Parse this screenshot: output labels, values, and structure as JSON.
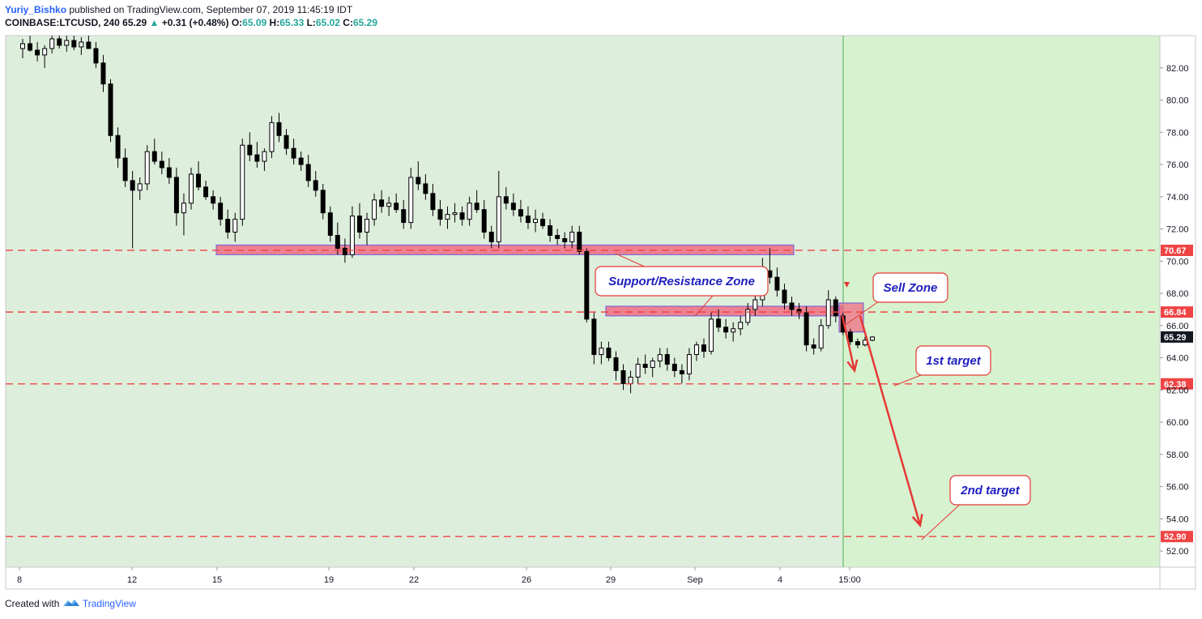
{
  "header": {
    "author": "Yuriy_Bishko",
    "published": "published on TradingView.com, September 07, 2019 11:45:19 IDT",
    "symbol": "COINBASE:LTCUSD, 240",
    "last": "65.29",
    "change_arrow": "▲",
    "change": "+0.31 (+0.48%)",
    "o_label": "O:",
    "o_value": "65.09",
    "h_label": "H:",
    "h_value": "65.33",
    "l_label": "L:",
    "l_value": "65.02",
    "c_label": "C:",
    "c_value": "65.29"
  },
  "footer": {
    "created_with": "Created with",
    "brand": "TradingView",
    "logo_icon": "tradingview-logo-icon"
  },
  "colors": {
    "past_background": "#deeedd",
    "future_background": "#d7f2cf",
    "level_line": "#ef4444",
    "level_tag": "#ef4444",
    "zone_fill": "#f06d84",
    "zone_border": "#6b5bd6",
    "callout_border": "#e53935",
    "callout_text": "#1d1dbf",
    "arrow": "#e53935",
    "candle": "#000000",
    "current_price_tag": "#131722",
    "vertical_line": "#4caf50"
  },
  "chart_data": {
    "type": "candlestick",
    "timeframe": "240",
    "ylim": [
      51,
      84
    ],
    "y_ticks": [
      "82.00",
      "80.00",
      "78.00",
      "76.00",
      "74.00",
      "72.00",
      "70.00",
      "68.00",
      "66.00",
      "64.00",
      "62.00",
      "60.00",
      "58.00",
      "56.00",
      "54.00",
      "52.00"
    ],
    "x_ticks": [
      "8",
      "12",
      "15",
      "19",
      "22",
      "26",
      "29",
      "Sep",
      "4",
      "15:00"
    ],
    "current_price": "65.29",
    "levels": [
      {
        "price": 70.67,
        "label": "70.67"
      },
      {
        "price": 66.84,
        "label": "66.84"
      },
      {
        "price": 62.38,
        "label": "62.38"
      },
      {
        "price": 52.9,
        "label": "52.90"
      }
    ],
    "zones": [
      {
        "name": "upper-support-resistance",
        "from_date": "Aug 15",
        "to_date": "Sep 4",
        "low": 70.4,
        "high": 71.0
      },
      {
        "name": "lower-support-resistance",
        "from_date": "Aug 29",
        "to_date": "Sep 6",
        "low": 66.6,
        "high": 67.2
      },
      {
        "name": "sell-zone",
        "from_date": "Sep 6",
        "to_date": "Sep 7",
        "low": 65.6,
        "high": 67.4
      }
    ],
    "annotations": [
      {
        "text": "Support/Resistance Zone"
      },
      {
        "text": "Sell Zone"
      },
      {
        "text": "1st target"
      },
      {
        "text": "2nd target"
      }
    ],
    "arrows": [
      {
        "from_price": 66.6,
        "to_price": 63.2
      },
      {
        "from_price": 66.6,
        "to_price": 53.6
      }
    ],
    "candles": [
      {
        "o": 83.2,
        "h": 83.8,
        "l": 82.6,
        "c": 83.5
      },
      {
        "o": 83.5,
        "h": 84.0,
        "l": 83.0,
        "c": 83.1
      },
      {
        "o": 83.1,
        "h": 83.6,
        "l": 82.4,
        "c": 82.8
      },
      {
        "o": 82.8,
        "h": 83.4,
        "l": 82.0,
        "c": 83.2
      },
      {
        "o": 83.2,
        "h": 84.1,
        "l": 82.9,
        "c": 83.8
      },
      {
        "o": 83.8,
        "h": 84.2,
        "l": 83.2,
        "c": 83.4
      },
      {
        "o": 83.4,
        "h": 84.0,
        "l": 83.0,
        "c": 83.7
      },
      {
        "o": 83.7,
        "h": 84.0,
        "l": 83.1,
        "c": 83.3
      },
      {
        "o": 83.3,
        "h": 83.9,
        "l": 82.8,
        "c": 83.6
      },
      {
        "o": 83.6,
        "h": 84.1,
        "l": 83.2,
        "c": 83.2
      },
      {
        "o": 83.2,
        "h": 83.6,
        "l": 82.0,
        "c": 82.3
      },
      {
        "o": 82.3,
        "h": 82.8,
        "l": 80.5,
        "c": 81.0
      },
      {
        "o": 81.0,
        "h": 81.3,
        "l": 77.4,
        "c": 77.8
      },
      {
        "o": 77.8,
        "h": 78.3,
        "l": 75.8,
        "c": 76.4
      },
      {
        "o": 76.4,
        "h": 77.0,
        "l": 74.6,
        "c": 75.0
      },
      {
        "o": 75.0,
        "h": 75.6,
        "l": 70.8,
        "c": 74.4
      },
      {
        "o": 74.4,
        "h": 75.2,
        "l": 73.8,
        "c": 74.8
      },
      {
        "o": 74.8,
        "h": 77.2,
        "l": 74.4,
        "c": 76.8
      },
      {
        "o": 76.8,
        "h": 77.6,
        "l": 76.0,
        "c": 76.2
      },
      {
        "o": 76.2,
        "h": 76.8,
        "l": 75.4,
        "c": 75.8
      },
      {
        "o": 75.8,
        "h": 76.4,
        "l": 74.8,
        "c": 75.2
      },
      {
        "o": 75.2,
        "h": 75.8,
        "l": 72.2,
        "c": 73.0
      },
      {
        "o": 73.0,
        "h": 74.2,
        "l": 71.6,
        "c": 73.6
      },
      {
        "o": 73.6,
        "h": 75.8,
        "l": 73.2,
        "c": 75.4
      },
      {
        "o": 75.4,
        "h": 76.2,
        "l": 74.4,
        "c": 74.6
      },
      {
        "o": 74.6,
        "h": 75.0,
        "l": 73.8,
        "c": 74.0
      },
      {
        "o": 74.0,
        "h": 74.4,
        "l": 73.2,
        "c": 73.6
      },
      {
        "o": 73.6,
        "h": 74.0,
        "l": 72.2,
        "c": 72.6
      },
      {
        "o": 72.6,
        "h": 73.2,
        "l": 71.4,
        "c": 71.8
      },
      {
        "o": 71.8,
        "h": 73.0,
        "l": 71.2,
        "c": 72.6
      },
      {
        "o": 72.6,
        "h": 77.6,
        "l": 72.2,
        "c": 77.2
      },
      {
        "o": 77.2,
        "h": 78.0,
        "l": 76.2,
        "c": 76.6
      },
      {
        "o": 76.6,
        "h": 77.4,
        "l": 75.8,
        "c": 76.2
      },
      {
        "o": 76.2,
        "h": 77.0,
        "l": 75.6,
        "c": 76.8
      },
      {
        "o": 76.8,
        "h": 79.0,
        "l": 76.4,
        "c": 78.6
      },
      {
        "o": 78.6,
        "h": 79.2,
        "l": 77.4,
        "c": 77.8
      },
      {
        "o": 77.8,
        "h": 78.2,
        "l": 76.6,
        "c": 77.0
      },
      {
        "o": 77.0,
        "h": 77.6,
        "l": 76.0,
        "c": 76.4
      },
      {
        "o": 76.4,
        "h": 76.8,
        "l": 75.6,
        "c": 76.0
      },
      {
        "o": 76.0,
        "h": 76.6,
        "l": 74.6,
        "c": 75.0
      },
      {
        "o": 75.0,
        "h": 75.6,
        "l": 74.0,
        "c": 74.4
      },
      {
        "o": 74.4,
        "h": 74.8,
        "l": 72.6,
        "c": 73.0
      },
      {
        "o": 73.0,
        "h": 73.4,
        "l": 71.2,
        "c": 71.6
      },
      {
        "o": 71.6,
        "h": 72.4,
        "l": 70.4,
        "c": 70.8
      },
      {
        "o": 70.8,
        "h": 71.4,
        "l": 69.9,
        "c": 70.4
      },
      {
        "o": 70.4,
        "h": 73.4,
        "l": 70.2,
        "c": 72.8
      },
      {
        "o": 72.8,
        "h": 73.6,
        "l": 71.4,
        "c": 71.8
      },
      {
        "o": 71.8,
        "h": 73.0,
        "l": 71.0,
        "c": 72.6
      },
      {
        "o": 72.6,
        "h": 74.2,
        "l": 72.2,
        "c": 73.8
      },
      {
        "o": 73.8,
        "h": 74.4,
        "l": 73.0,
        "c": 73.4
      },
      {
        "o": 73.4,
        "h": 74.0,
        "l": 72.8,
        "c": 73.6
      },
      {
        "o": 73.6,
        "h": 74.2,
        "l": 73.0,
        "c": 73.2
      },
      {
        "o": 73.2,
        "h": 73.8,
        "l": 72.0,
        "c": 72.4
      },
      {
        "o": 72.4,
        "h": 75.8,
        "l": 72.0,
        "c": 75.2
      },
      {
        "o": 75.2,
        "h": 76.2,
        "l": 74.4,
        "c": 74.8
      },
      {
        "o": 74.8,
        "h": 75.4,
        "l": 73.8,
        "c": 74.2
      },
      {
        "o": 74.2,
        "h": 74.8,
        "l": 72.8,
        "c": 73.2
      },
      {
        "o": 73.2,
        "h": 73.8,
        "l": 72.2,
        "c": 72.6
      },
      {
        "o": 72.6,
        "h": 73.4,
        "l": 72.0,
        "c": 72.9
      },
      {
        "o": 72.9,
        "h": 73.6,
        "l": 72.4,
        "c": 73.0
      },
      {
        "o": 73.0,
        "h": 73.4,
        "l": 72.2,
        "c": 72.6
      },
      {
        "o": 72.6,
        "h": 74.0,
        "l": 72.2,
        "c": 73.6
      },
      {
        "o": 73.6,
        "h": 74.4,
        "l": 73.0,
        "c": 73.2
      },
      {
        "o": 73.2,
        "h": 73.8,
        "l": 71.4,
        "c": 71.8
      },
      {
        "o": 71.8,
        "h": 72.2,
        "l": 70.8,
        "c": 71.2
      },
      {
        "o": 71.2,
        "h": 75.6,
        "l": 70.8,
        "c": 74.0
      },
      {
        "o": 74.0,
        "h": 74.6,
        "l": 73.2,
        "c": 73.6
      },
      {
        "o": 73.6,
        "h": 74.2,
        "l": 72.8,
        "c": 73.2
      },
      {
        "o": 73.2,
        "h": 73.8,
        "l": 72.4,
        "c": 72.8
      },
      {
        "o": 72.8,
        "h": 73.4,
        "l": 72.0,
        "c": 72.4
      },
      {
        "o": 72.4,
        "h": 73.2,
        "l": 71.8,
        "c": 72.6
      },
      {
        "o": 72.6,
        "h": 73.0,
        "l": 72.0,
        "c": 72.2
      },
      {
        "o": 72.2,
        "h": 72.6,
        "l": 71.2,
        "c": 71.6
      },
      {
        "o": 71.6,
        "h": 72.0,
        "l": 71.0,
        "c": 71.4
      },
      {
        "o": 71.4,
        "h": 71.8,
        "l": 70.8,
        "c": 71.2
      },
      {
        "o": 71.2,
        "h": 72.2,
        "l": 70.8,
        "c": 71.8
      },
      {
        "o": 71.8,
        "h": 72.2,
        "l": 70.4,
        "c": 70.6
      },
      {
        "o": 70.6,
        "h": 70.8,
        "l": 66.2,
        "c": 66.4
      },
      {
        "o": 66.4,
        "h": 66.8,
        "l": 63.6,
        "c": 64.2
      },
      {
        "o": 64.2,
        "h": 65.0,
        "l": 63.6,
        "c": 64.6
      },
      {
        "o": 64.6,
        "h": 65.0,
        "l": 63.8,
        "c": 64.0
      },
      {
        "o": 64.0,
        "h": 64.4,
        "l": 62.6,
        "c": 63.2
      },
      {
        "o": 63.2,
        "h": 63.6,
        "l": 62.0,
        "c": 62.4
      },
      {
        "o": 62.4,
        "h": 63.2,
        "l": 61.8,
        "c": 62.8
      },
      {
        "o": 62.8,
        "h": 64.0,
        "l": 62.4,
        "c": 63.6
      },
      {
        "o": 63.6,
        "h": 64.2,
        "l": 63.0,
        "c": 63.4
      },
      {
        "o": 63.4,
        "h": 64.0,
        "l": 62.8,
        "c": 63.8
      },
      {
        "o": 63.8,
        "h": 64.6,
        "l": 63.4,
        "c": 64.2
      },
      {
        "o": 64.2,
        "h": 64.6,
        "l": 63.2,
        "c": 63.6
      },
      {
        "o": 63.6,
        "h": 64.0,
        "l": 62.8,
        "c": 63.2
      },
      {
        "o": 63.2,
        "h": 63.6,
        "l": 62.4,
        "c": 63.0
      },
      {
        "o": 63.0,
        "h": 64.6,
        "l": 62.6,
        "c": 64.2
      },
      {
        "o": 64.2,
        "h": 65.0,
        "l": 63.8,
        "c": 64.8
      },
      {
        "o": 64.8,
        "h": 65.2,
        "l": 64.0,
        "c": 64.4
      },
      {
        "o": 64.4,
        "h": 66.8,
        "l": 64.2,
        "c": 66.4
      },
      {
        "o": 66.4,
        "h": 67.0,
        "l": 65.6,
        "c": 65.9
      },
      {
        "o": 65.9,
        "h": 66.4,
        "l": 65.2,
        "c": 65.6
      },
      {
        "o": 65.6,
        "h": 66.2,
        "l": 65.0,
        "c": 65.8
      },
      {
        "o": 65.8,
        "h": 66.6,
        "l": 65.4,
        "c": 66.2
      },
      {
        "o": 66.2,
        "h": 67.4,
        "l": 66.0,
        "c": 67.0
      },
      {
        "o": 67.0,
        "h": 68.0,
        "l": 66.6,
        "c": 67.6
      },
      {
        "o": 67.6,
        "h": 70.2,
        "l": 67.2,
        "c": 69.4
      },
      {
        "o": 69.4,
        "h": 70.8,
        "l": 68.6,
        "c": 69.0
      },
      {
        "o": 69.0,
        "h": 69.6,
        "l": 67.8,
        "c": 68.2
      },
      {
        "o": 68.2,
        "h": 68.6,
        "l": 67.0,
        "c": 67.4
      },
      {
        "o": 67.4,
        "h": 67.8,
        "l": 66.6,
        "c": 67.0
      },
      {
        "o": 67.0,
        "h": 67.4,
        "l": 66.4,
        "c": 66.8
      },
      {
        "o": 66.8,
        "h": 67.2,
        "l": 64.4,
        "c": 64.8
      },
      {
        "o": 64.8,
        "h": 65.2,
        "l": 64.2,
        "c": 64.6
      },
      {
        "o": 64.6,
        "h": 66.4,
        "l": 64.4,
        "c": 66.0
      },
      {
        "o": 66.0,
        "h": 68.2,
        "l": 65.8,
        "c": 67.6
      },
      {
        "o": 67.6,
        "h": 67.8,
        "l": 66.2,
        "c": 66.6
      },
      {
        "o": 66.6,
        "h": 66.8,
        "l": 65.4,
        "c": 65.6
      },
      {
        "o": 65.6,
        "h": 65.8,
        "l": 64.8,
        "c": 65.0
      },
      {
        "o": 65.0,
        "h": 65.2,
        "l": 64.6,
        "c": 64.8
      },
      {
        "o": 64.8,
        "h": 65.3,
        "l": 64.7,
        "c": 65.09
      },
      {
        "o": 65.09,
        "h": 65.33,
        "l": 65.02,
        "c": 65.29
      }
    ]
  }
}
